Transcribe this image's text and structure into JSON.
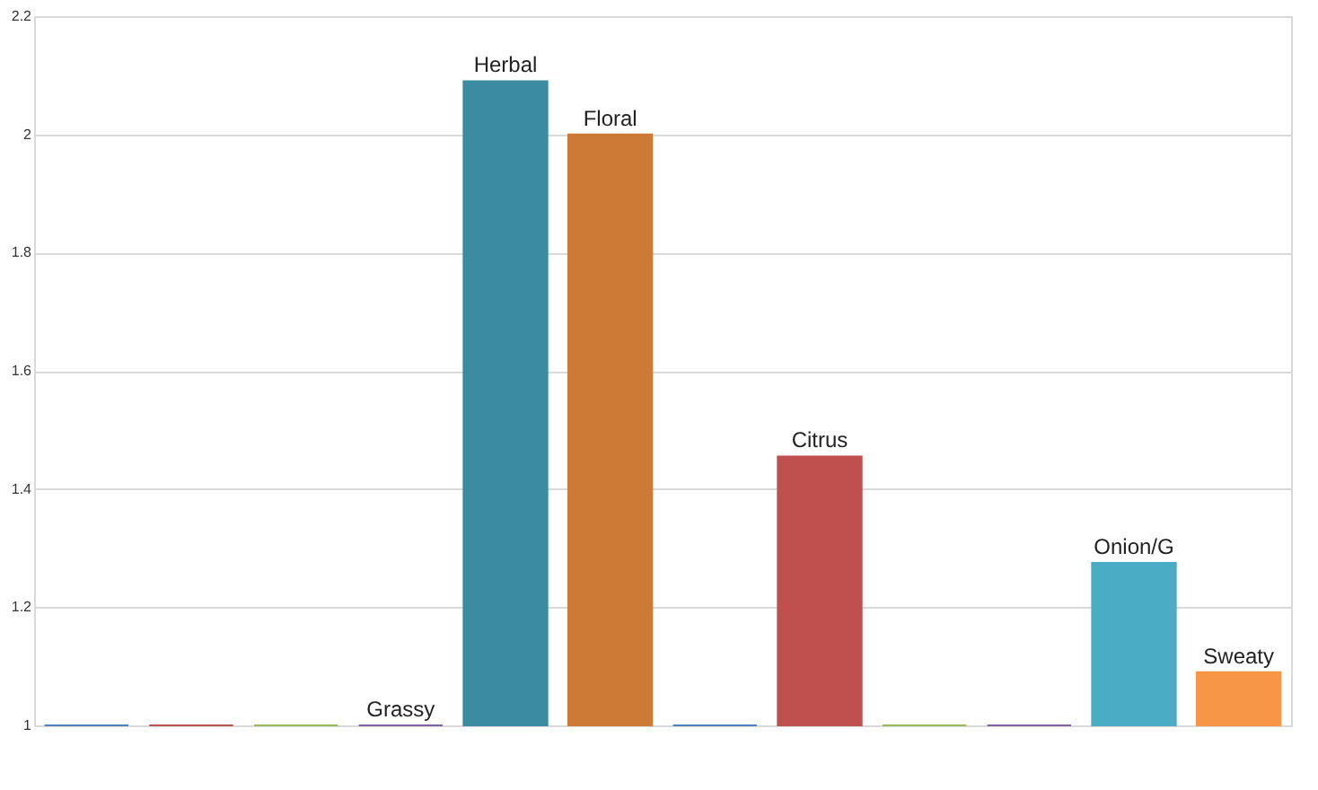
{
  "chart_data": {
    "type": "bar",
    "categories": [
      null,
      null,
      null,
      "Grassy",
      "Herbal",
      "Floral",
      null,
      "Citrus",
      null,
      null,
      "Onion/G",
      "Sweaty"
    ],
    "values": [
      1,
      1,
      1,
      1,
      2.09,
      2.0,
      1,
      1.455,
      1,
      1,
      1.275,
      1.09
    ],
    "colors": [
      "#4f81bd",
      "#c0504d",
      "#9bbb59",
      "#8064a2",
      "#3b8ba3",
      "#cd7a36",
      "#4f81bd",
      "#c0504d",
      "#9bbb59",
      "#8064a2",
      "#4bacc6",
      "#f79646"
    ],
    "ylim": [
      1,
      2.2
    ],
    "yticks": [
      1,
      1.2,
      1.4,
      1.6,
      1.8,
      2,
      2.2
    ],
    "grid": "y",
    "tick_labels": "y"
  }
}
